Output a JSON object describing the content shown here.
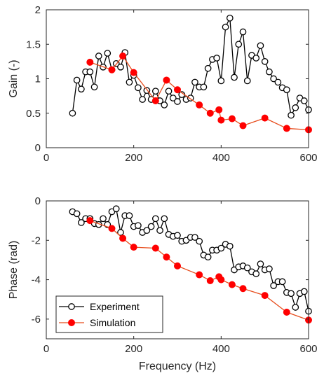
{
  "chart_data": [
    {
      "type": "line",
      "title": "",
      "xlabel": "",
      "ylabel": "Gain (-)",
      "xlim": [
        0,
        600
      ],
      "ylim": [
        0,
        2
      ],
      "xticks": [
        0,
        200,
        400,
        600
      ],
      "xtick_labels": [
        "0",
        "200",
        "400",
        "600"
      ],
      "yticks": [
        0,
        0.5,
        1,
        1.5,
        2
      ],
      "ytick_labels": [
        "0",
        "0.5",
        "1",
        "1.5",
        "2"
      ],
      "grid": false,
      "series": [
        {
          "marker": "open-circle",
          "color": "#000000",
          "x": [
            60,
            70,
            80,
            90,
            100,
            110,
            120,
            130,
            140,
            150,
            160,
            170,
            180,
            190,
            200,
            210,
            220,
            230,
            240,
            250,
            260,
            270,
            280,
            290,
            300,
            310,
            320,
            330,
            340,
            350,
            360,
            370,
            380,
            390,
            400,
            410,
            420,
            430,
            440,
            450,
            460,
            470,
            480,
            490,
            500,
            510,
            520,
            530,
            540,
            550,
            560,
            570,
            580,
            590,
            600
          ],
          "y": [
            0.5,
            0.98,
            0.85,
            1.1,
            1.1,
            0.88,
            1.33,
            1.17,
            1.37,
            1.13,
            1.22,
            1.17,
            1.38,
            0.95,
            1.05,
            0.87,
            0.7,
            0.83,
            0.7,
            0.82,
            0.68,
            0.62,
            0.82,
            0.72,
            0.67,
            0.77,
            0.7,
            0.72,
            0.95,
            0.88,
            0.88,
            1.15,
            1.28,
            1.3,
            0.97,
            1.75,
            1.88,
            1.02,
            1.5,
            1.68,
            0.97,
            1.34,
            1.3,
            1.48,
            1.25,
            1.1,
            1.0,
            0.95,
            0.87,
            0.84,
            0.47,
            0.58,
            0.72,
            0.68,
            0.55
          ]
        },
        {
          "marker": "filled-circle",
          "color": "#e74c1c",
          "marker_color": "#ff0000",
          "x": [
            100,
            150,
            175,
            200,
            250,
            275,
            300,
            350,
            375,
            395,
            400,
            425,
            450,
            500,
            550,
            600
          ],
          "y": [
            1.24,
            1.13,
            1.33,
            1.09,
            0.68,
            0.98,
            0.84,
            0.62,
            0.5,
            0.55,
            0.4,
            0.42,
            0.32,
            0.43,
            0.28,
            0.26
          ]
        }
      ]
    },
    {
      "type": "line",
      "title": "",
      "xlabel": "Frequency (Hz)",
      "ylabel": "Phase (rad)",
      "xlim": [
        0,
        600
      ],
      "ylim": [
        -7,
        0
      ],
      "xticks": [
        0,
        200,
        400,
        600
      ],
      "xtick_labels": [
        "0",
        "200",
        "400",
        "600"
      ],
      "yticks": [
        -6,
        -4,
        -2,
        0
      ],
      "ytick_labels": [
        "-6",
        "-4",
        "-2",
        "0"
      ],
      "grid": false,
      "legend": {
        "placement": "bottom-left",
        "entries": [
          "Experiment",
          "Simulation"
        ]
      },
      "series": [
        {
          "name": "Experiment",
          "marker": "open-circle",
          "color": "#000000",
          "x": [
            60,
            70,
            80,
            90,
            100,
            110,
            120,
            130,
            140,
            150,
            160,
            170,
            180,
            190,
            200,
            210,
            220,
            230,
            240,
            250,
            260,
            270,
            280,
            290,
            300,
            310,
            320,
            330,
            340,
            350,
            360,
            370,
            380,
            390,
            400,
            410,
            420,
            430,
            440,
            450,
            460,
            470,
            480,
            490,
            500,
            510,
            520,
            530,
            540,
            550,
            560,
            570,
            580,
            590,
            600
          ],
          "y": [
            -0.55,
            -0.65,
            -1.1,
            -0.9,
            -0.9,
            -1.15,
            -1.2,
            -0.9,
            -1.2,
            -0.55,
            -0.4,
            -1.6,
            -0.75,
            -0.75,
            -1.3,
            -1.25,
            -1.6,
            -1.5,
            -1.3,
            -0.9,
            -1.5,
            -0.9,
            -1.7,
            -1.8,
            -1.75,
            -2.05,
            -2.0,
            -1.85,
            -1.85,
            -2.05,
            -2.75,
            -2.85,
            -2.5,
            -2.5,
            -2.4,
            -2.2,
            -2.3,
            -3.5,
            -3.35,
            -3.3,
            -3.4,
            -3.6,
            -3.7,
            -3.2,
            -3.5,
            -3.45,
            -4.3,
            -4.1,
            -4.1,
            -4.65,
            -4.7,
            -5.4,
            -4.7,
            -4.6,
            -5.6
          ]
        },
        {
          "name": "Simulation",
          "marker": "filled-circle",
          "color": "#e74c1c",
          "marker_color": "#ff0000",
          "x": [
            100,
            150,
            175,
            200,
            250,
            275,
            300,
            350,
            375,
            395,
            400,
            425,
            450,
            500,
            550,
            600
          ],
          "y": [
            -1.0,
            -1.4,
            -1.9,
            -2.35,
            -2.4,
            -2.85,
            -3.3,
            -3.75,
            -4.05,
            -3.85,
            -4.0,
            -4.25,
            -4.45,
            -4.8,
            -5.65,
            -6.05
          ]
        }
      ]
    }
  ]
}
